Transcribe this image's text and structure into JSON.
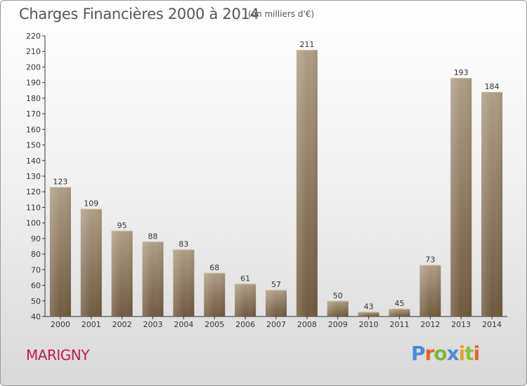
{
  "header": {
    "title": "Charges Financières 2000 à 2014",
    "subtitle": "(en milliers d'€)"
  },
  "footer": {
    "city": "MARIGNY",
    "logo_text": "Proxiti"
  },
  "colors": {
    "bar_top": "#ae9e84",
    "bar_bottom": "#6f5a3e",
    "city": "#c2185b"
  },
  "chart_data": {
    "type": "bar",
    "title": "Charges Financières 2000 à 2014",
    "subtitle": "(en milliers d'€)",
    "categories": [
      "2000",
      "2001",
      "2002",
      "2003",
      "2004",
      "2005",
      "2006",
      "2007",
      "2008",
      "2009",
      "2010",
      "2011",
      "2012",
      "2013",
      "2014"
    ],
    "values": [
      123,
      109,
      95,
      88,
      83,
      68,
      61,
      57,
      211,
      50,
      43,
      45,
      73,
      193,
      184
    ],
    "ylim": [
      40,
      220
    ],
    "yticks": [
      40,
      50,
      60,
      70,
      80,
      90,
      100,
      110,
      120,
      130,
      140,
      150,
      160,
      170,
      180,
      190,
      200,
      210,
      220
    ],
    "xlabel": "",
    "ylabel": "",
    "grid": false,
    "data_labels": true
  }
}
